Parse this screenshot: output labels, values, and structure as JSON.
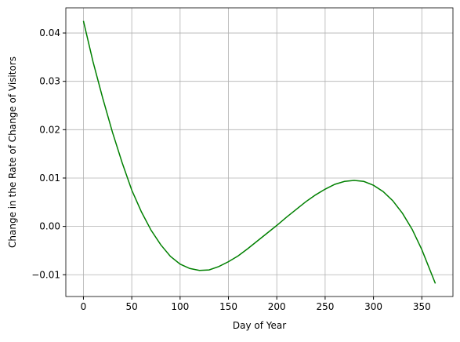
{
  "chart_data": {
    "type": "line",
    "x_label": "Day of Year",
    "y_label": "Change in the Rate of Change of Visitors",
    "x": [
      0,
      10,
      20,
      30,
      40,
      50,
      60,
      70,
      80,
      90,
      100,
      110,
      120,
      130,
      140,
      150,
      160,
      170,
      180,
      190,
      200,
      210,
      220,
      230,
      240,
      250,
      260,
      270,
      280,
      290,
      300,
      310,
      320,
      330,
      340,
      350,
      364
    ],
    "series": [
      {
        "color": "#008000",
        "values": [
          0.0425,
          0.034,
          0.0265,
          0.0195,
          0.0132,
          0.0075,
          0.003,
          -0.0008,
          -0.0038,
          -0.0062,
          -0.0078,
          -0.0087,
          -0.0091,
          -0.009,
          -0.0083,
          -0.0073,
          -0.0061,
          -0.0046,
          -0.003,
          -0.0014,
          0.0002,
          0.0019,
          0.0035,
          0.0051,
          0.0065,
          0.0077,
          0.0087,
          0.0093,
          0.0095,
          0.0093,
          0.0085,
          0.0072,
          0.0053,
          0.0027,
          -0.0006,
          -0.0048,
          -0.0118
        ]
      }
    ],
    "xlim": [
      -18.2,
      382.2
    ],
    "ylim": [
      -0.0145,
      0.0452
    ],
    "xticks": [
      0,
      50,
      100,
      150,
      200,
      250,
      300,
      350
    ],
    "yticks": [
      {
        "value": -0.01,
        "label": "−0.01"
      },
      {
        "value": 0,
        "label": "0.00"
      },
      {
        "value": 0.01,
        "label": "0.01"
      },
      {
        "value": 0.02,
        "label": "0.02"
      },
      {
        "value": 0.03,
        "label": "0.03"
      },
      {
        "value": 0.04,
        "label": "0.04"
      }
    ],
    "grid": true
  }
}
